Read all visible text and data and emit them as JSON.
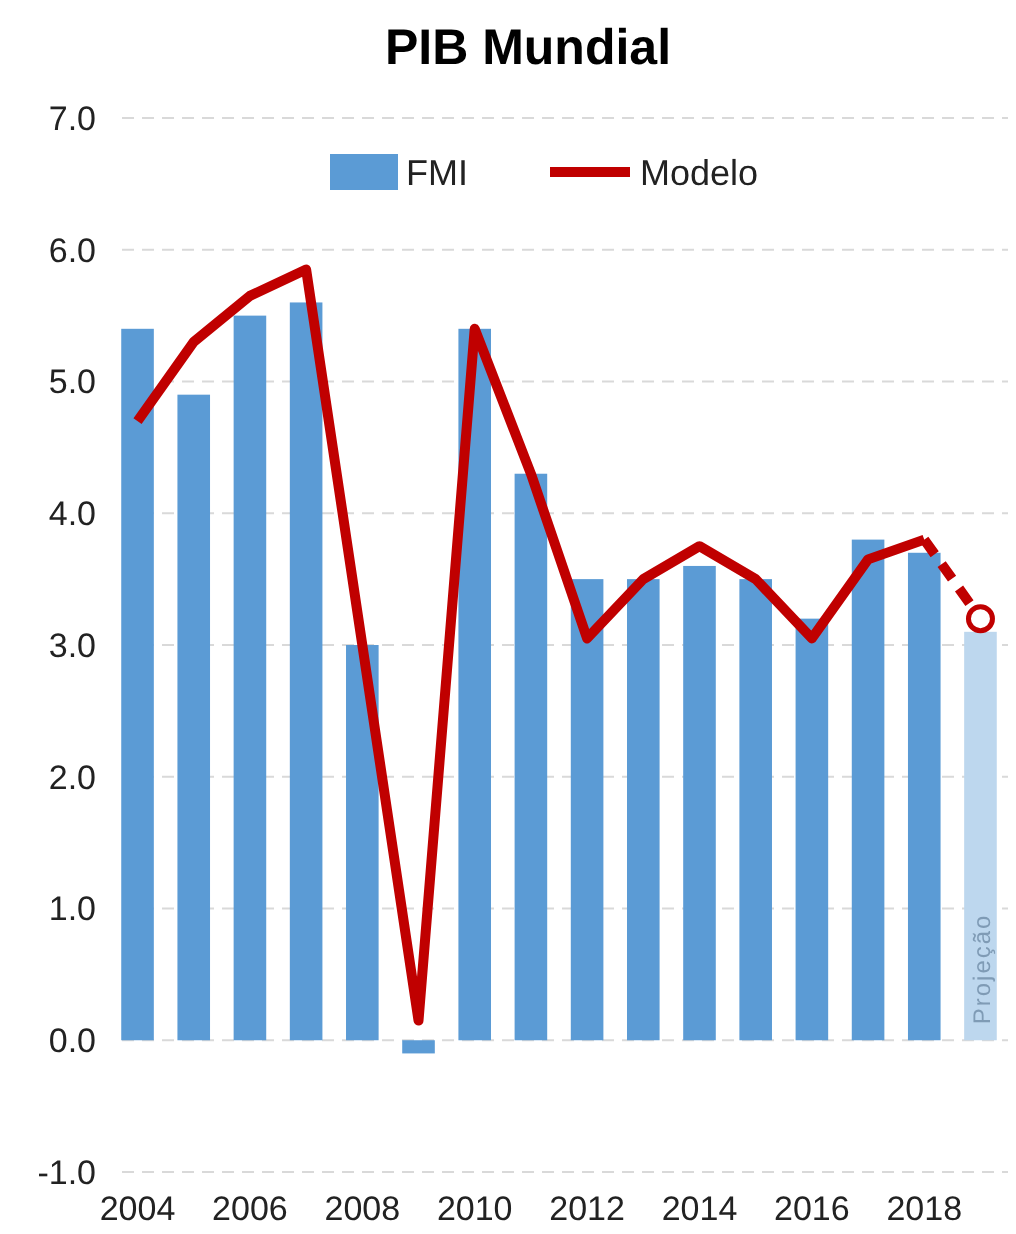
{
  "chart_data": {
    "type": "bar",
    "title": "PIB Mundial",
    "categories": [
      "2004",
      null,
      "2006",
      null,
      "2008",
      null,
      "2010",
      null,
      "2012",
      null,
      "2014",
      null,
      "2016",
      null,
      "2018",
      null
    ],
    "series": [
      {
        "name": "FMI",
        "color": "#5b9bd5",
        "colors": [
          "#5b9bd5",
          "#5b9bd5",
          "#5b9bd5",
          "#5b9bd5",
          "#5b9bd5",
          "#5b9bd5",
          "#5b9bd5",
          "#5b9bd5",
          "#5b9bd5",
          "#5b9bd5",
          "#5b9bd5",
          "#5b9bd5",
          "#5b9bd5",
          "#5b9bd5",
          "#5b9bd5",
          "#bdd7ee"
        ],
        "values": [
          5.4,
          4.9,
          5.5,
          5.6,
          3.0,
          -0.1,
          5.4,
          4.3,
          3.5,
          3.5,
          3.6,
          3.5,
          3.2,
          3.8,
          3.7,
          3.1
        ]
      },
      {
        "name": "Modelo",
        "type": "line",
        "color": "#c00000",
        "line_style": "solid",
        "marker": "none",
        "values": [
          4.7,
          5.3,
          5.65,
          5.85,
          3.0,
          0.15,
          5.4,
          4.3,
          3.05,
          3.5,
          3.75,
          3.5,
          3.05,
          3.65,
          3.8,
          null
        ]
      },
      {
        "type": "line",
        "color": "#c00000",
        "line_style": "dashed",
        "marker": "circle",
        "values": [
          null,
          null,
          null,
          null,
          null,
          null,
          null,
          null,
          null,
          null,
          null,
          null,
          null,
          null,
          3.8,
          3.2
        ]
      }
    ],
    "ylim": [
      -1,
      7
    ],
    "yticks": [
      {
        "value": -1,
        "label": "-1.0"
      },
      {
        "value": 0,
        "label": "0.0"
      },
      {
        "value": 1,
        "label": "1.0"
      },
      {
        "value": 2,
        "label": "2.0"
      },
      {
        "value": 3,
        "label": "3.0"
      },
      {
        "value": 4,
        "label": "4.0"
      },
      {
        "value": 5,
        "label": "5.0"
      },
      {
        "value": 6,
        "label": "6.0"
      },
      {
        "value": 7,
        "label": "7.0"
      }
    ],
    "grid": "y",
    "legend": "top",
    "annotations": [
      "Projeção"
    ]
  }
}
